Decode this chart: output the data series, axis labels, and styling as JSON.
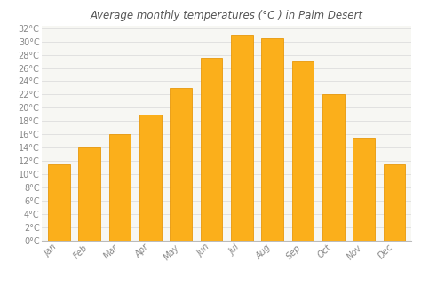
{
  "title": "Average monthly temperatures (°C ) in Palm Desert",
  "months": [
    "Jan",
    "Feb",
    "Mar",
    "Apr",
    "May",
    "Jun",
    "Jul",
    "Aug",
    "Sep",
    "Oct",
    "Nov",
    "Dec"
  ],
  "values": [
    11.5,
    14.0,
    16.0,
    19.0,
    23.0,
    27.5,
    31.0,
    30.5,
    27.0,
    22.0,
    15.5,
    11.5
  ],
  "bar_color": "#FBAF1B",
  "bar_edge_color": "#E8980A",
  "background_color": "#FFFFFF",
  "plot_bg_color": "#F7F7F3",
  "grid_color": "#DDDDDD",
  "ytick_min": 0,
  "ytick_max": 32,
  "ytick_step": 2,
  "title_fontsize": 8.5,
  "tick_fontsize": 7,
  "title_color": "#555555",
  "tick_color": "#888888",
  "axis_color": "#BBBBBB"
}
